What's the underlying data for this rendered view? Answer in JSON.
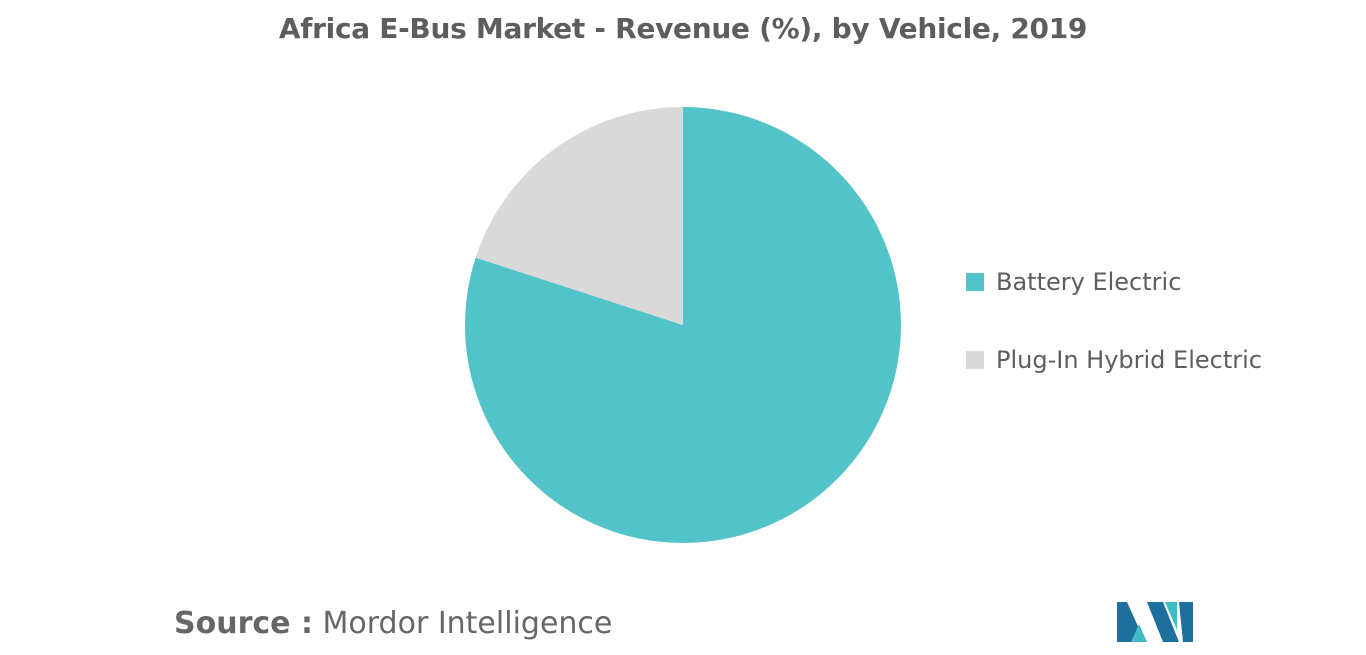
{
  "chart_data": {
    "type": "pie",
    "title": "Africa E-Bus Market - Revenue (%), by Vehicle, 2019",
    "categories": [
      "Battery Electric",
      "Plug-In Hybrid Electric"
    ],
    "values": [
      80,
      20
    ],
    "colors": [
      "#52c3c9",
      "#d9d9d9"
    ],
    "legend_position": "right",
    "start_angle_deg": 0,
    "direction": "clockwise"
  },
  "source": {
    "prefix": "Source :",
    "name": "Mordor Intelligence"
  },
  "logo": {
    "name": "mordor-intelligence-logo",
    "colors": [
      "#1f6f9c",
      "#3fbcc4"
    ]
  }
}
